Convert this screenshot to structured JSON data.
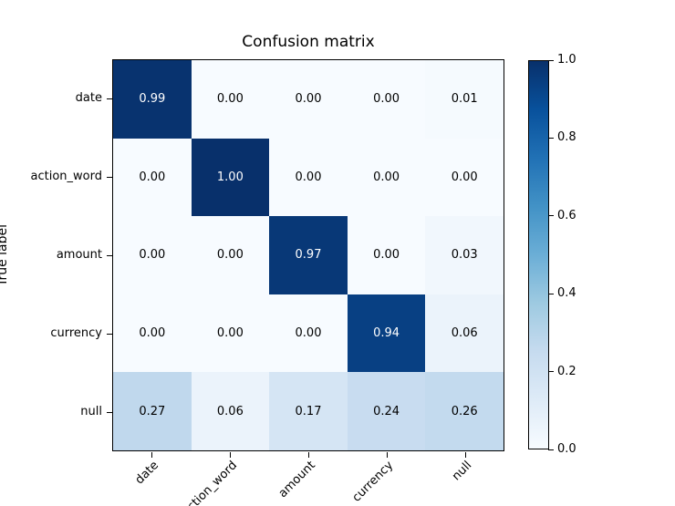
{
  "chart_data": {
    "type": "heatmap",
    "title": "Confusion matrix",
    "ylabel": "True label",
    "categories": [
      "date",
      "action_word",
      "amount",
      "currency",
      "null"
    ],
    "x_categories": [
      "date",
      "action_word",
      "amount",
      "currency",
      "null"
    ],
    "rows": [
      [
        0.99,
        0.0,
        0.0,
        0.0,
        0.01
      ],
      [
        0.0,
        1.0,
        0.0,
        0.0,
        0.0
      ],
      [
        0.0,
        0.0,
        0.97,
        0.0,
        0.03
      ],
      [
        0.0,
        0.0,
        0.0,
        0.94,
        0.06
      ],
      [
        0.27,
        0.06,
        0.17,
        0.24,
        0.26
      ]
    ],
    "value_range": [
      0,
      1
    ],
    "value_decimals": 2,
    "grid": false,
    "legend_position": "right-colorbar",
    "colorbar_ticks": [
      1.0,
      0.8,
      0.6,
      0.4,
      0.2,
      0.0
    ],
    "colorbar_tick_decimals": 1,
    "colormap_name": "Blues",
    "colormap_anchors": [
      "#f7fbff",
      "#deebf7",
      "#c6dbef",
      "#9ecae1",
      "#6baed6",
      "#4292c6",
      "#2171b5",
      "#08519c",
      "#08306b"
    ],
    "cell_text_color_light": "#000000",
    "cell_text_color_dark": "#ffffff",
    "cell_text_threshold": 0.5,
    "axis_color": "#000000"
  }
}
